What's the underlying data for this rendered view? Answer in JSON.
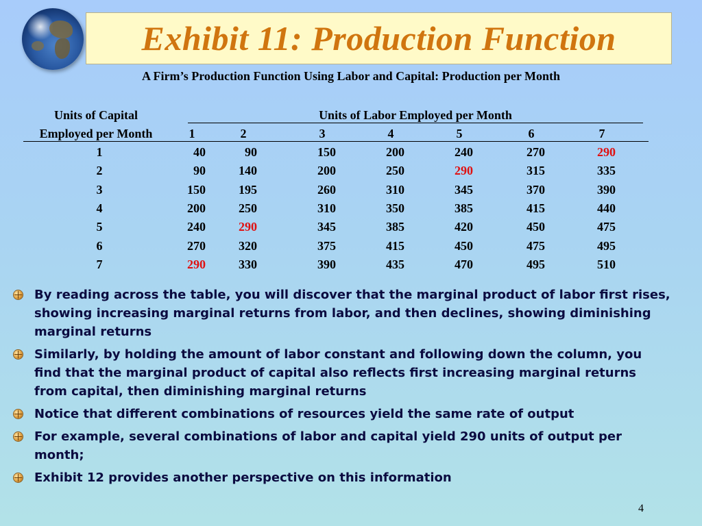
{
  "title": "Exhibit 11:  Production Function",
  "subtitle": "A Firm’s Production Function Using Labor and Capital: Production per Month",
  "table": {
    "capital_header_line1": "Units of Capital",
    "capital_header_line2": "Employed per Month",
    "labor_header": "Units of Labor Employed per Month",
    "labor_columns": [
      "1",
      "2",
      "3",
      "4",
      "5",
      "6",
      "7"
    ],
    "rows": [
      {
        "capital": "1",
        "values": [
          "40",
          "90",
          "150",
          "200",
          "240",
          "270",
          "290"
        ]
      },
      {
        "capital": "2",
        "values": [
          "90",
          "140",
          "200",
          "250",
          "290",
          "315",
          "335"
        ]
      },
      {
        "capital": "3",
        "values": [
          "150",
          "195",
          "260",
          "310",
          "345",
          "370",
          "390"
        ]
      },
      {
        "capital": "4",
        "values": [
          "200",
          "250",
          "310",
          "350",
          "385",
          "415",
          "440"
        ]
      },
      {
        "capital": "5",
        "values": [
          "240",
          "290",
          "345",
          "385",
          "420",
          "450",
          "475"
        ]
      },
      {
        "capital": "6",
        "values": [
          "270",
          "320",
          "375",
          "415",
          "450",
          "475",
          "495"
        ]
      },
      {
        "capital": "7",
        "values": [
          "290",
          "330",
          "390",
          "435",
          "470",
          "495",
          "510"
        ]
      }
    ],
    "highlight_value": "290",
    "highlight_color": "#e01010"
  },
  "bullets": [
    "By reading across the table, you will discover that the marginal product of labor first rises, showing increasing marginal returns from labor, and then declines, showing diminishing marginal returns",
    "Similarly, by holding the amount of labor constant and following down the column, you find that the marginal product of capital also reflects first increasing marginal returns from capital, then diminishing marginal returns",
    "Notice that different combinations of resources yield the same rate of output",
    "For example, several combinations of labor and capital yield 290 units of output per month;",
    "Exhibit 12 provides another perspective on this information"
  ],
  "page_number": "4",
  "colors": {
    "title": "#d0750f",
    "title_banner": "#fffac8",
    "bullet_text": "#0b0b40"
  },
  "icons": {
    "globe": "globe-icon",
    "bullet": "bullet-marker-icon"
  }
}
